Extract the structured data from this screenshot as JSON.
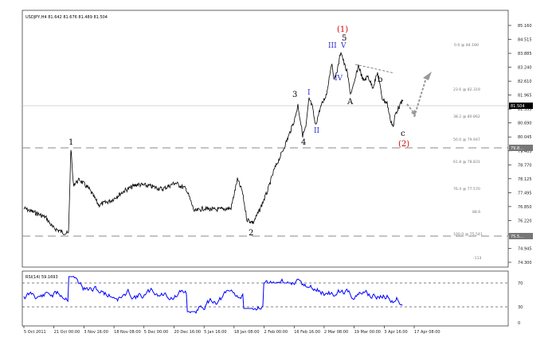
{
  "header": {
    "symbol_info": "USDJPY,H4  81.642 81.676 81.489 81.504"
  },
  "price_axis": {
    "ticks": [
      "85.160",
      "84.515",
      "83.885",
      "83.240",
      "82.610",
      "81.965",
      "81.335",
      "80.690",
      "80.045",
      "79.405",
      "78.770",
      "78.125",
      "77.495",
      "76.850",
      "76.220",
      "75.575",
      "74.945",
      "74.300"
    ],
    "current_price": "81.504",
    "marker_price": "79.8…",
    "marker2_price": "75.5…"
  },
  "fib_levels": [
    {
      "label": "0.0 @ 84.180"
    },
    {
      "label": "23.6 @ 82.319"
    },
    {
      "label": "38.2 @ 80.862"
    },
    {
      "label": "50.0 @ 79.947"
    },
    {
      "label": "61.8 @ 78.831"
    },
    {
      "label": "76.4 @ 77.570"
    },
    {
      "label": "88.6"
    },
    {
      "label": "100.0 @ 75.541"
    },
    {
      "label": "-113"
    }
  ],
  "rsi": {
    "title": "RSI(14) 59.1693",
    "levels": [
      "70",
      "30"
    ],
    "zero_label": "0",
    "hundred_label": "100"
  },
  "time_axis": {
    "labels": [
      "5 Oct 2011",
      "21 Oct 00:00",
      "3 Nov 16:00",
      "18 Nov 08:00",
      "5 Dec 00:00",
      "20 Dec 16:00",
      "5 Jan 16:00",
      "18 Jan 08:00",
      "2 Feb 00:00",
      "16 Feb 16:00",
      "2 Mar 08:00",
      "19 Mar 00:00",
      "3 Apr 16:00",
      "17 Apr 08:00"
    ]
  },
  "annotations": {
    "wave_1": "1",
    "wave_2": "2",
    "wave_3": "3",
    "wave_4": "4",
    "wave_5": "5",
    "wave_sub_I": "I",
    "wave_sub_II": "II",
    "wave_sub_III": "III",
    "wave_sub_IV": "IV",
    "wave_sub_V": "V",
    "wave_A": "A",
    "wave_b": "b",
    "wave_c": "c",
    "wave_big1": "(1)",
    "wave_big2": "(2)"
  },
  "colors": {
    "price_line": "#000000",
    "rsi_line": "#0000ff",
    "fib_line": "#888888",
    "subwave": "#2b2bd6",
    "red_label": "#d40000",
    "projection_arrow": "#999999"
  }
}
